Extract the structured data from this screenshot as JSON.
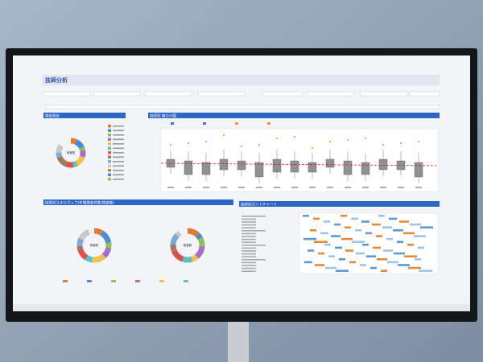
{
  "header": {
    "title": "技師分析"
  },
  "panels": [
    {
      "title": "検査割合",
      "center_label": "検査数"
    },
    {
      "title": "技師別 箱ひげ図"
    },
    {
      "title": "技師別スキルマップ(年間検査件数/検査数)",
      "center_label": "検査数"
    },
    {
      "title": "技師別ガントチャート"
    }
  ]
}
